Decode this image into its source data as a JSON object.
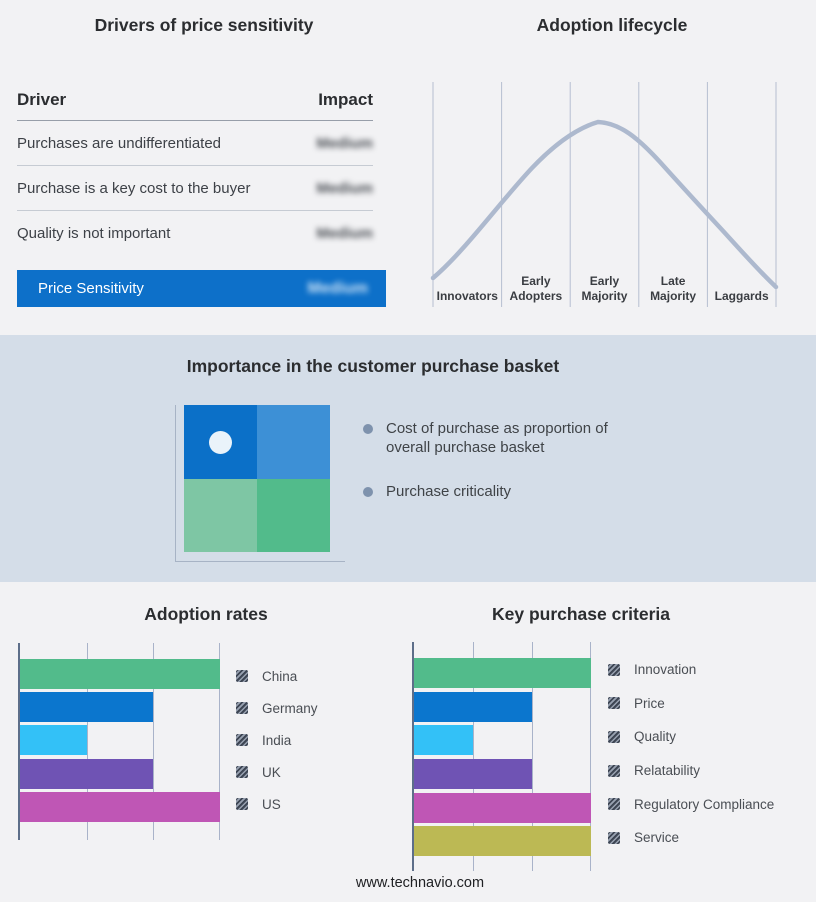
{
  "page": {
    "footer": "www.technavio.com"
  },
  "drivers": {
    "title": "Drivers of price sensitivity",
    "columns": {
      "driver": "Driver",
      "impact": "Impact"
    },
    "rows": [
      {
        "driver": "Purchases are undifferentiated",
        "impact": "Medium",
        "impact_redacted_blur": true
      },
      {
        "driver": "Purchase is a key cost to the buyer",
        "impact": "Medium",
        "impact_redacted_blur": true
      },
      {
        "driver": "Quality is not important",
        "impact": "Medium",
        "impact_redacted_blur": true
      }
    ],
    "summary_row": {
      "label": "Price Sensitivity",
      "impact": "Medium",
      "impact_redacted_blur": true,
      "highlight_color": "#0d70c9"
    }
  },
  "lifecycle": {
    "title": "Adoption lifecycle",
    "stages": [
      "Innovators",
      "Early Adopters",
      "Early Majority",
      "Late Majority",
      "Laggards"
    ]
  },
  "basket": {
    "title": "Importance in the customer purchase basket",
    "bullets": [
      "Cost of purchase as proportion of overall purchase basket",
      "Purchase criticality"
    ],
    "quadrant_colors": {
      "top_left": "#0b70c8",
      "top_right": "#3d90d6",
      "bottom_left": "#7ec6a4",
      "bottom_right": "#52bb8b",
      "marker_dot": "#eaf3fa"
    },
    "band_color": "#d4dde8",
    "bullet_color": "#7e92ad"
  },
  "chart_data": [
    {
      "id": "adoption-lifecycle",
      "type": "line",
      "title": "Adoption lifecycle",
      "x_categories": [
        "Innovators",
        "Early Adopters",
        "Early Majority",
        "Late Majority",
        "Laggards"
      ],
      "curve_shape": "bell curve rising from Innovators, peaking within Early Majority, falling to Laggards",
      "values_at_stage_boundaries_pct": [
        16,
        57,
        94,
        88,
        51,
        10
      ],
      "peak_value_pct": 100,
      "grid": "vertical stage separators only",
      "line_color": "#adb9ce",
      "axes_labeled": false
    },
    {
      "id": "adoption-rates",
      "type": "bar",
      "orientation": "horizontal",
      "title": "Adoption rates",
      "categories": [
        "China",
        "Germany",
        "India",
        "UK",
        "US"
      ],
      "values": [
        3,
        2,
        1,
        2,
        3
      ],
      "xlim": [
        0,
        3
      ],
      "x_tick_labels": [],
      "colors": [
        "#52bb8b",
        "#0b76ce",
        "#33c1f7",
        "#6f53b4",
        "#bf56b5"
      ],
      "legend_position": "right",
      "grid": "vertical gridlines at each unit",
      "note": "axis unlabeled; values estimated in gridline units"
    },
    {
      "id": "key-purchase-criteria",
      "type": "bar",
      "orientation": "horizontal",
      "title": "Key purchase criteria",
      "categories": [
        "Innovation",
        "Price",
        "Quality",
        "Relatability",
        "Regulatory Compliance",
        "Service"
      ],
      "values": [
        3,
        2,
        1,
        2,
        3,
        3
      ],
      "xlim": [
        0,
        3
      ],
      "x_tick_labels": [],
      "colors": [
        "#52bb8b",
        "#0b76ce",
        "#33c1f7",
        "#6f53b4",
        "#bf56b5",
        "#bcb954"
      ],
      "legend_position": "right",
      "grid": "vertical gridlines at each unit",
      "note": "axis unlabeled; values estimated in gridline units"
    }
  ]
}
